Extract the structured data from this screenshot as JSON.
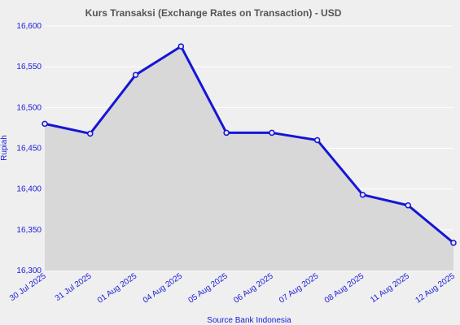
{
  "chart_data": {
    "type": "area",
    "title": "Kurs Transaksi (Exchange Rates on Transaction) - USD",
    "xlabel": "Source Bank Indonesia",
    "ylabel": "Rupiah",
    "categories": [
      "30 Jul 2025",
      "31 Jul 2025",
      "01 Aug 2025",
      "04 Aug 2025",
      "05 Aug 2025",
      "06 Aug 2025",
      "07 Aug 2025",
      "08 Aug 2025",
      "11 Aug 2025",
      "12 Aug 2025"
    ],
    "values": [
      16480,
      16468,
      16540,
      16575,
      16469,
      16469,
      16460,
      16393,
      16380,
      16334
    ],
    "ylim": [
      16300,
      16600
    ],
    "yticks": [
      16300,
      16350,
      16400,
      16450,
      16500,
      16550,
      16600
    ],
    "ytick_labels": [
      "16,300",
      "16,350",
      "16,400",
      "16,450",
      "16,500",
      "16,550",
      "16,600"
    ],
    "grid": true,
    "legend": "none",
    "colors": {
      "line": "#1515d6",
      "fill": "#d8d8d8",
      "background": "#efefef",
      "text": "#1b1bd8",
      "title": "#555555"
    }
  }
}
